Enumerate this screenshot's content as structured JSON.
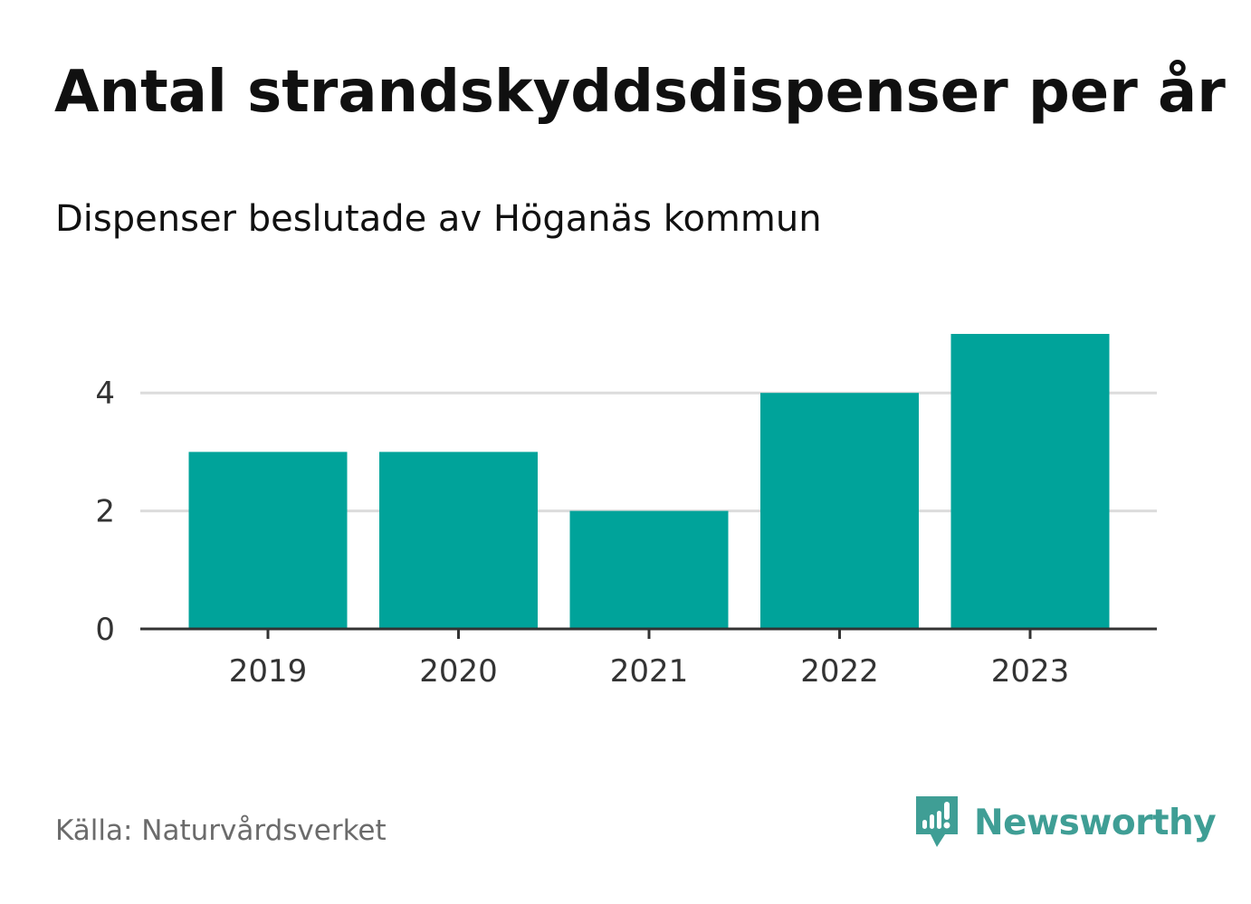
{
  "header": {
    "title": "Antal strandskyddsdispenser per år",
    "subtitle": "Dispenser beslutade av Höganäs kommun"
  },
  "footer": {
    "source": "Källa: Naturvårdsverket",
    "brand": "Newsworthy",
    "brand_icon": "newsworthy-logo-icon"
  },
  "colors": {
    "bar": "#00a39a",
    "gridline": "#dcdcdc",
    "axis": "#333333",
    "brand": "#3f9e95"
  },
  "chart_data": {
    "type": "bar",
    "title": "Antal strandskyddsdispenser per år",
    "subtitle": "Dispenser beslutade av Höganäs kommun",
    "categories": [
      "2019",
      "2020",
      "2021",
      "2022",
      "2023"
    ],
    "values": [
      3,
      3,
      2,
      4,
      5
    ],
    "xlabel": "",
    "ylabel": "",
    "ylim": [
      0,
      5
    ],
    "yticks": [
      0,
      2,
      4
    ],
    "grid": true
  }
}
